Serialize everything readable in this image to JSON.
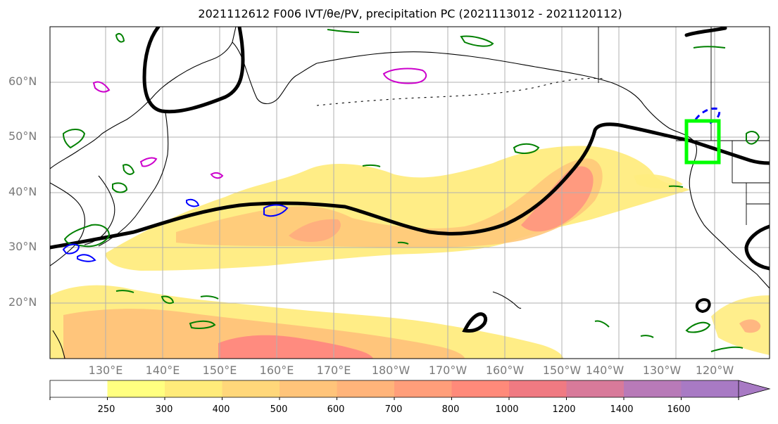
{
  "title": "2021112612 F006 IVT/θe/PV, precipitation PC (2021113012 - 2021120112)",
  "lat_labels": [
    "60°N",
    "50°N",
    "40°N",
    "30°N",
    "20°N"
  ],
  "lon_labels": [
    "130°E",
    "140°E",
    "150°E",
    "160°E",
    "170°E",
    "180°W",
    "170°W",
    "160°W",
    "150°W",
    "140°W",
    "130°W",
    "120°W"
  ],
  "colorbar": {
    "ticks": [
      "250",
      "300",
      "400",
      "500",
      "600",
      "700",
      "800",
      "1000",
      "1200",
      "1400",
      "1600"
    ],
    "colors": [
      "#ffffff",
      "#ffff80",
      "#ffeb7a",
      "#ffd77a",
      "#ffc47a",
      "#ffb47a",
      "#ff9e7a",
      "#ff8a7a",
      "#f07a82",
      "#d87a9a",
      "#b87ab8",
      "#a87ac4",
      "#a87ac4"
    ]
  },
  "colors": {
    "ivt_contour": "#000000",
    "theta_e": "#008000",
    "pv_blue": "#0000ff",
    "pv_magenta": "#cc00cc",
    "target_box": "#00ff00",
    "coastline": "#000000",
    "grid": "#b0b0b0"
  }
}
